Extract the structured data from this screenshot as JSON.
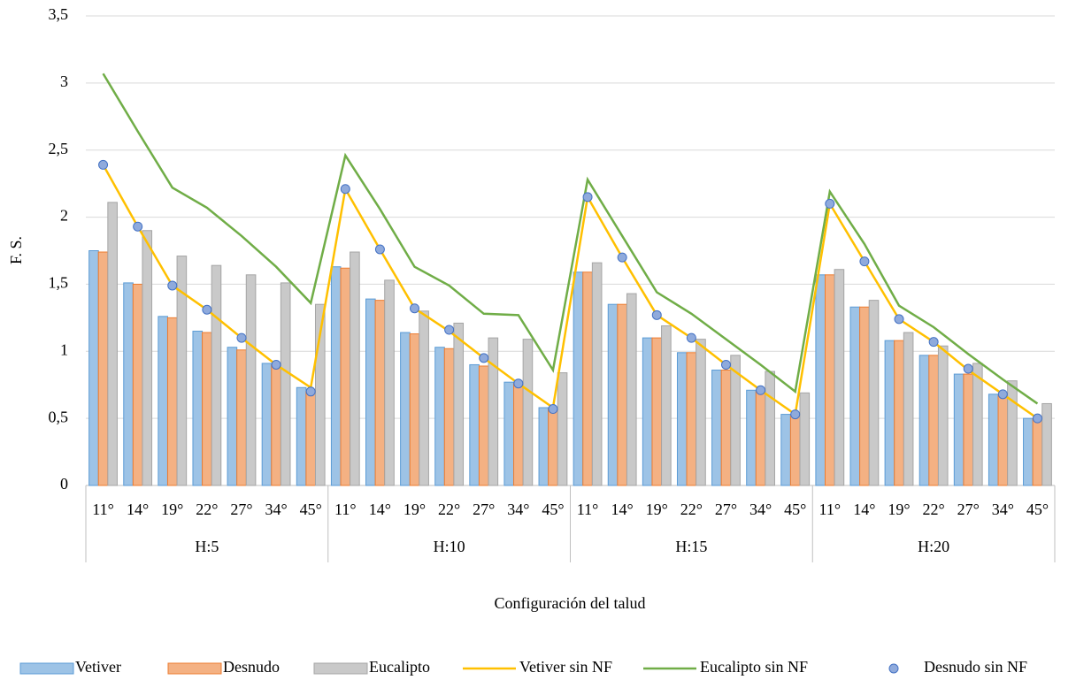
{
  "chart_data": {
    "type": "bar",
    "y_label": "F. S.",
    "x_label": "Configuración del talud",
    "categories": [
      "11°",
      "14°",
      "19°",
      "22°",
      "27°",
      "34°",
      "45°",
      "11°",
      "14°",
      "19°",
      "22°",
      "27°",
      "34°",
      "45°",
      "11°",
      "14°",
      "19°",
      "22°",
      "27°",
      "34°",
      "45°",
      "11°",
      "14°",
      "19°",
      "22°",
      "27°",
      "34°",
      "45°"
    ],
    "groups": [
      "H:5",
      "H:10",
      "H:15",
      "H:20"
    ],
    "ylim": [
      0,
      3.5
    ],
    "yticks": [
      0,
      {
        "value": 0.5,
        "label": "0,5"
      },
      1,
      {
        "value": 1.5,
        "label": "1,5"
      },
      2,
      {
        "value": 2.5,
        "label": "2,5"
      },
      3,
      {
        "value": 3.5,
        "label": "3,5"
      }
    ],
    "grid": true,
    "legend": "bottom",
    "series": [
      {
        "name": "Vetiver",
        "type": "bar",
        "color": "#9DC3E6",
        "values": [
          1.75,
          1.51,
          1.26,
          1.15,
          1.03,
          0.91,
          0.73,
          1.63,
          1.39,
          1.14,
          1.03,
          0.9,
          0.77,
          0.58,
          1.59,
          1.35,
          1.1,
          0.99,
          0.86,
          0.71,
          0.53,
          1.57,
          1.33,
          1.08,
          0.97,
          0.83,
          0.68,
          0.5
        ]
      },
      {
        "name": "Desnudo",
        "type": "bar",
        "color": "#F4B183",
        "values": [
          1.74,
          1.5,
          1.25,
          1.14,
          1.01,
          0.9,
          0.7,
          1.62,
          1.38,
          1.13,
          1.02,
          0.89,
          0.76,
          0.57,
          1.59,
          1.35,
          1.1,
          0.99,
          0.86,
          0.7,
          0.52,
          1.57,
          1.33,
          1.08,
          0.97,
          0.83,
          0.67,
          0.5
        ]
      },
      {
        "name": "Eucalipto",
        "type": "bar",
        "color": "#C9C9C9",
        "values": [
          2.11,
          1.9,
          1.71,
          1.64,
          1.57,
          1.51,
          1.35,
          1.74,
          1.53,
          1.3,
          1.21,
          1.1,
          1.09,
          0.84,
          1.66,
          1.43,
          1.19,
          1.09,
          0.97,
          0.85,
          0.69,
          1.61,
          1.38,
          1.14,
          1.04,
          0.91,
          0.78,
          0.61
        ]
      },
      {
        "name": "Vetiver sin NF",
        "type": "line",
        "color": "#FFC000",
        "values": [
          2.39,
          1.93,
          1.49,
          1.31,
          1.1,
          0.9,
          0.73,
          2.21,
          1.76,
          1.32,
          1.15,
          0.95,
          0.76,
          0.58,
          2.15,
          1.7,
          1.27,
          1.1,
          0.9,
          0.71,
          0.53,
          2.1,
          1.67,
          1.24,
          1.07,
          0.86,
          0.68,
          0.5
        ]
      },
      {
        "name": "Eucalipto sin NF",
        "type": "line",
        "color": "#70AD47",
        "values": [
          3.07,
          2.64,
          2.22,
          2.07,
          1.86,
          1.63,
          1.36,
          2.46,
          2.06,
          1.63,
          1.49,
          1.28,
          1.27,
          0.86,
          2.28,
          1.86,
          1.44,
          1.28,
          1.09,
          0.9,
          0.7,
          2.19,
          1.8,
          1.34,
          1.18,
          0.98,
          0.79,
          0.61
        ]
      },
      {
        "name": "Desnudo sin NF",
        "type": "scatter",
        "color": "#8FAADC",
        "values": [
          2.39,
          1.93,
          1.49,
          1.31,
          1.1,
          0.9,
          0.7,
          2.21,
          1.76,
          1.32,
          1.16,
          0.95,
          0.76,
          0.57,
          2.15,
          1.7,
          1.27,
          1.1,
          0.9,
          0.71,
          0.53,
          2.1,
          1.67,
          1.24,
          1.07,
          0.87,
          0.68,
          0.5
        ]
      }
    ]
  }
}
